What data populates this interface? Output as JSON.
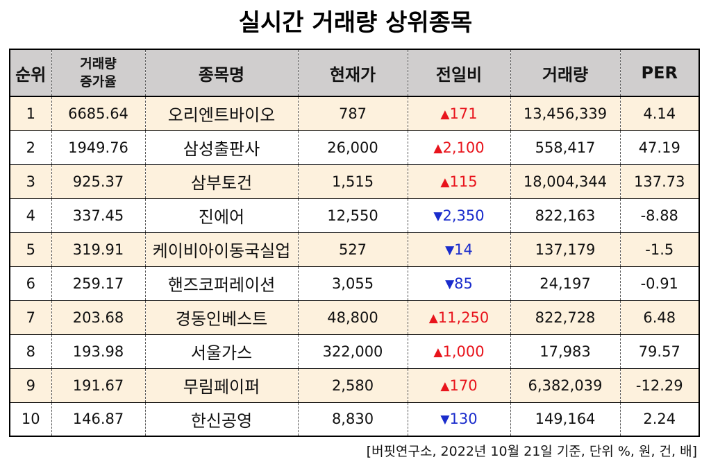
{
  "title": "실시간 거래량 상위종목",
  "headers": {
    "rank": "순위",
    "vol_inc_line1": "거래량",
    "vol_inc_line2": "증가율",
    "name": "종목명",
    "price": "현재가",
    "change": "전일비",
    "volume": "거래량",
    "per": "PER"
  },
  "colors": {
    "up": "#e8141c",
    "down": "#1a2ccc",
    "header_bg": "#d0cece",
    "odd_row_bg": "#fdf1dd"
  },
  "rows": [
    {
      "rank": "1",
      "inc": "6685.64",
      "name": "오리엔트바이오",
      "price": "787",
      "dir": "up",
      "arrow": "▲",
      "change": "171",
      "volume": "13,456,339",
      "per": "4.14"
    },
    {
      "rank": "2",
      "inc": "1949.76",
      "name": "삼성출판사",
      "price": "26,000",
      "dir": "up",
      "arrow": "▲",
      "change": "2,100",
      "volume": "558,417",
      "per": "47.19"
    },
    {
      "rank": "3",
      "inc": "925.37",
      "name": "삼부토건",
      "price": "1,515",
      "dir": "up",
      "arrow": "▲",
      "change": "115",
      "volume": "18,004,344",
      "per": "137.73"
    },
    {
      "rank": "4",
      "inc": "337.45",
      "name": "진에어",
      "price": "12,550",
      "dir": "down",
      "arrow": "▼",
      "change": "2,350",
      "volume": "822,163",
      "per": "-8.88"
    },
    {
      "rank": "5",
      "inc": "319.91",
      "name": "케이비아이동국실업",
      "price": "527",
      "dir": "down",
      "arrow": "▼",
      "change": "14",
      "volume": "137,179",
      "per": "-1.5"
    },
    {
      "rank": "6",
      "inc": "259.17",
      "name": "핸즈코퍼레이션",
      "price": "3,055",
      "dir": "down",
      "arrow": "▼",
      "change": "85",
      "volume": "24,197",
      "per": "-0.91"
    },
    {
      "rank": "7",
      "inc": "203.68",
      "name": "경동인베스트",
      "price": "48,800",
      "dir": "up",
      "arrow": "▲",
      "change": "11,250",
      "volume": "822,728",
      "per": "6.48"
    },
    {
      "rank": "8",
      "inc": "193.98",
      "name": "서울가스",
      "price": "322,000",
      "dir": "up",
      "arrow": "▲",
      "change": "1,000",
      "volume": "17,983",
      "per": "79.57"
    },
    {
      "rank": "9",
      "inc": "191.67",
      "name": "무림페이퍼",
      "price": "2,580",
      "dir": "up",
      "arrow": "▲",
      "change": "170",
      "volume": "6,382,039",
      "per": "-12.29"
    },
    {
      "rank": "10",
      "inc": "146.87",
      "name": "한신공영",
      "price": "8,830",
      "dir": "down",
      "arrow": "▼",
      "change": "130",
      "volume": "149,164",
      "per": "2.24"
    }
  ],
  "footer": "[버핏연구소, 2022년 10월 21일 기준, 단위 %, 원, 건, 배]"
}
